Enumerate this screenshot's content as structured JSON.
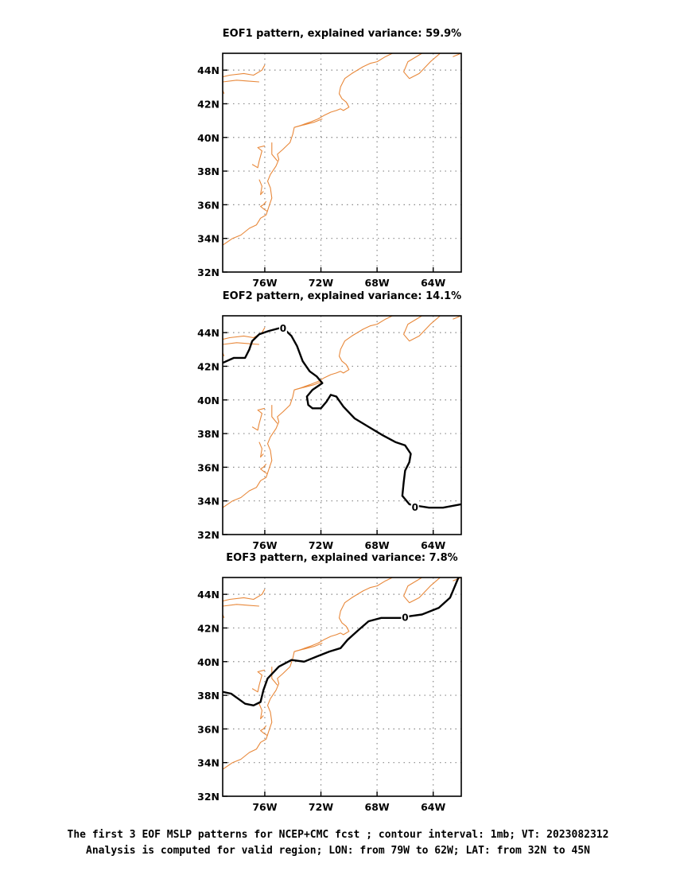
{
  "panels": [
    {
      "id": "eof1",
      "title": "EOF1 pattern, explained variance: 59.9%",
      "zero_contour": [],
      "zero_labels": []
    },
    {
      "id": "eof2",
      "title": "EOF2 pattern, explained variance: 14.1%",
      "zero_contour": [
        [
          -79,
          42.2
        ],
        [
          -78.2,
          42.5
        ],
        [
          -77.4,
          42.5
        ],
        [
          -77.1,
          43.0
        ],
        [
          -76.9,
          43.5
        ],
        [
          -76.4,
          43.9
        ],
        [
          -75.7,
          44.1
        ],
        [
          -74.8,
          44.3
        ],
        [
          -74.6,
          44.2
        ],
        [
          -74.1,
          43.8
        ],
        [
          -73.7,
          43.2
        ],
        [
          -73.3,
          42.3
        ],
        [
          -72.8,
          41.7
        ],
        [
          -72.3,
          41.4
        ],
        [
          -71.9,
          41.0
        ],
        [
          -72.6,
          40.6
        ],
        [
          -73.0,
          40.2
        ],
        [
          -72.9,
          39.7
        ],
        [
          -72.6,
          39.5
        ],
        [
          -72.0,
          39.5
        ],
        [
          -71.6,
          39.9
        ],
        [
          -71.3,
          40.3
        ],
        [
          -70.9,
          40.2
        ],
        [
          -70.4,
          39.6
        ],
        [
          -69.6,
          38.9
        ],
        [
          -68.6,
          38.4
        ],
        [
          -67.6,
          37.9
        ],
        [
          -66.7,
          37.5
        ],
        [
          -66.0,
          37.3
        ],
        [
          -65.6,
          36.8
        ],
        [
          -65.7,
          36.3
        ],
        [
          -66.0,
          35.8
        ],
        [
          -66.1,
          35.1
        ],
        [
          -66.2,
          34.3
        ],
        [
          -65.7,
          33.8
        ],
        [
          -65.1,
          33.7
        ],
        [
          -64.3,
          33.6
        ],
        [
          -63.3,
          33.6
        ],
        [
          -62.0,
          33.8
        ]
      ],
      "zero_labels": [
        {
          "lon": -74.7,
          "lat": 44.3,
          "text": "0"
        },
        {
          "lon": -65.3,
          "lat": 33.65,
          "text": "0"
        }
      ]
    },
    {
      "id": "eof3",
      "title": "EOF3 pattern, explained variance: 7.8%",
      "zero_contour": [
        [
          -79,
          38.2
        ],
        [
          -78.4,
          38.1
        ],
        [
          -77.9,
          37.8
        ],
        [
          -77.4,
          37.5
        ],
        [
          -76.8,
          37.4
        ],
        [
          -76.3,
          37.6
        ],
        [
          -76.1,
          38.3
        ],
        [
          -75.8,
          39.0
        ],
        [
          -75.0,
          39.7
        ],
        [
          -74.1,
          40.1
        ],
        [
          -73.2,
          40.0
        ],
        [
          -72.3,
          40.3
        ],
        [
          -71.4,
          40.6
        ],
        [
          -70.6,
          40.8
        ],
        [
          -70.1,
          41.3
        ],
        [
          -69.3,
          41.9
        ],
        [
          -68.6,
          42.4
        ],
        [
          -67.7,
          42.6
        ],
        [
          -66.8,
          42.6
        ],
        [
          -66.2,
          42.6
        ],
        [
          -65.7,
          42.7
        ],
        [
          -64.8,
          42.8
        ],
        [
          -63.6,
          43.2
        ],
        [
          -62.8,
          43.8
        ],
        [
          -62.2,
          45.0
        ]
      ],
      "zero_labels": [
        {
          "lon": -66.0,
          "lat": 42.65,
          "text": "0"
        }
      ]
    }
  ],
  "axes": {
    "lon_range": [
      -79,
      -62
    ],
    "lat_range": [
      32,
      45
    ],
    "lat_ticks": [
      {
        "v": 32,
        "label": "32N"
      },
      {
        "v": 34,
        "label": "34N"
      },
      {
        "v": 36,
        "label": "36N"
      },
      {
        "v": 38,
        "label": "38N"
      },
      {
        "v": 40,
        "label": "40N"
      },
      {
        "v": 42,
        "label": "42N"
      },
      {
        "v": 44,
        "label": "44N"
      }
    ],
    "lon_ticks": [
      {
        "v": -76,
        "label": "76W"
      },
      {
        "v": -72,
        "label": "72W"
      },
      {
        "v": -68,
        "label": "68W"
      },
      {
        "v": -64,
        "label": "64W"
      }
    ],
    "grid": "dotted"
  },
  "coastline": [
    [
      [
        -79,
        43.6
      ],
      [
        -78.5,
        43.7
      ],
      [
        -77.5,
        43.8
      ],
      [
        -76.8,
        43.7
      ],
      [
        -76.2,
        44.0
      ],
      [
        -76.0,
        44.3
      ]
    ],
    [
      [
        -79,
        43.3
      ],
      [
        -78.0,
        43.4
      ],
      [
        -77.2,
        43.35
      ],
      [
        -76.4,
        43.3
      ]
    ],
    [
      [
        -79,
        42.8
      ],
      [
        -78.9,
        42.6
      ]
    ],
    [
      [
        -79,
        33.6
      ],
      [
        -78.3,
        34.0
      ],
      [
        -77.7,
        34.2
      ],
      [
        -77.1,
        34.6
      ],
      [
        -76.6,
        34.8
      ],
      [
        -76.3,
        35.2
      ],
      [
        -75.9,
        35.4
      ],
      [
        -75.7,
        35.9
      ],
      [
        -75.5,
        36.4
      ],
      [
        -75.6,
        37.0
      ],
      [
        -75.8,
        37.4
      ],
      [
        -75.6,
        37.8
      ],
      [
        -75.2,
        38.3
      ],
      [
        -75.0,
        38.7
      ],
      [
        -75.1,
        39.0
      ],
      [
        -74.7,
        39.3
      ],
      [
        -74.2,
        39.7
      ],
      [
        -74.0,
        40.2
      ],
      [
        -73.9,
        40.6
      ],
      [
        -73.5,
        40.7
      ],
      [
        -72.8,
        40.9
      ],
      [
        -72.2,
        41.1
      ],
      [
        -71.8,
        41.3
      ],
      [
        -71.3,
        41.5
      ],
      [
        -70.9,
        41.6
      ],
      [
        -70.6,
        41.7
      ],
      [
        -70.4,
        41.6
      ],
      [
        -70.0,
        41.8
      ],
      [
        -70.2,
        42.1
      ],
      [
        -70.5,
        42.3
      ],
      [
        -70.7,
        42.6
      ],
      [
        -70.6,
        43.0
      ],
      [
        -70.3,
        43.5
      ],
      [
        -69.8,
        43.8
      ],
      [
        -69.0,
        44.2
      ],
      [
        -68.5,
        44.4
      ],
      [
        -68.0,
        44.5
      ],
      [
        -67.4,
        44.8
      ],
      [
        -66.9,
        45.0
      ]
    ],
    [
      [
        -75.9,
        36.2
      ],
      [
        -76.1,
        36.0
      ],
      [
        -76.3,
        35.9
      ],
      [
        -76.0,
        35.7
      ],
      [
        -75.8,
        35.6
      ]
    ],
    [
      [
        -76.4,
        37.5
      ],
      [
        -76.2,
        37.1
      ],
      [
        -76.3,
        36.6
      ],
      [
        -76.1,
        36.8
      ]
    ],
    [
      [
        -76.9,
        38.4
      ],
      [
        -76.5,
        38.2
      ],
      [
        -76.4,
        38.6
      ],
      [
        -76.2,
        39.2
      ],
      [
        -76.5,
        39.4
      ],
      [
        -76.0,
        39.5
      ]
    ],
    [
      [
        -75.5,
        39.7
      ],
      [
        -75.5,
        39.0
      ],
      [
        -75.1,
        38.6
      ]
    ],
    [
      [
        -73.9,
        40.6
      ],
      [
        -72.5,
        40.9
      ],
      [
        -71.9,
        41.1
      ]
    ],
    [
      [
        -63.5,
        45.0
      ],
      [
        -64.2,
        44.5
      ],
      [
        -65.0,
        43.8
      ],
      [
        -65.7,
        43.5
      ],
      [
        -66.1,
        43.9
      ],
      [
        -65.8,
        44.5
      ],
      [
        -64.8,
        45.0
      ]
    ],
    [
      [
        -62.0,
        45.0
      ],
      [
        -62.6,
        44.8
      ]
    ]
  ],
  "caption": {
    "line1": "The first 3 EOF MSLP patterns for NCEP+CMC fcst ; contour interval: 1mb; VT: 2023082312",
    "line2": "Analysis is computed for valid region; LON: from 79W to 62W; LAT: from 32N to 45N"
  },
  "colors": {
    "coastline": "#e8883a",
    "contour": "#000000",
    "grid": "#888888",
    "frame": "#000000"
  }
}
